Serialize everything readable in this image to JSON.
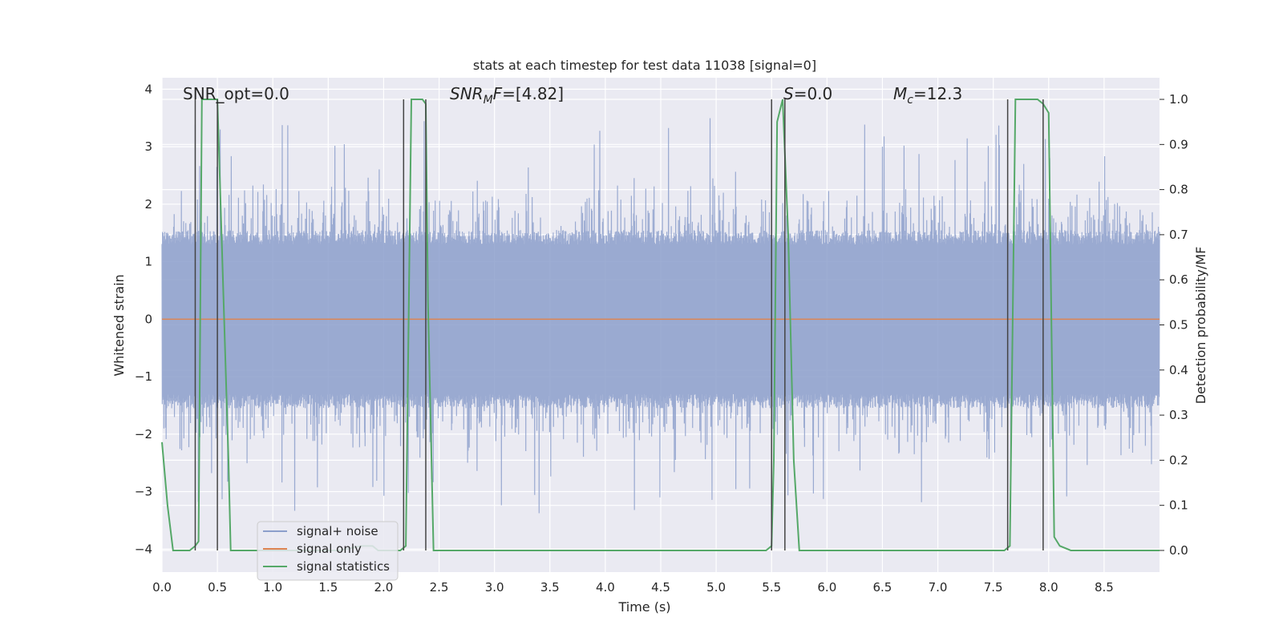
{
  "chart_data": {
    "type": "line",
    "title": "stats at each timestep for test data 11038 [signal=0]",
    "xlabel": "Time (s)",
    "ylabel": "Whitened strain",
    "y2label": "Detection probability/MF",
    "xlim": [
      0,
      9.0
    ],
    "ylim": [
      -4.4,
      4.2
    ],
    "y2lim": [
      -0.048,
      1.048
    ],
    "x_ticks": [
      "0.0",
      "0.5",
      "1.0",
      "1.5",
      "2.0",
      "2.5",
      "3.0",
      "3.5",
      "4.0",
      "4.5",
      "5.0",
      "5.5",
      "6.0",
      "6.5",
      "7.0",
      "7.5",
      "8.0",
      "8.5"
    ],
    "y_ticks": [
      "4",
      "3",
      "2",
      "1",
      "0",
      "−1",
      "−2",
      "−3",
      "−4"
    ],
    "y2_ticks": [
      "1.0",
      "0.9",
      "0.8",
      "0.7",
      "0.6",
      "0.5",
      "0.4",
      "0.3",
      "0.2",
      "0.1",
      "0.0"
    ],
    "grid": true,
    "legend_placement": "lower-left",
    "annotations": {
      "snr_opt": "SNR_opt=0.0",
      "snr_mf": "=[4.82]",
      "snr_mf_symbol": "SNR",
      "snr_mf_sub": "M",
      "snr_mf_suffix": "F",
      "s_label": "S",
      "s_value": "=0.0",
      "mc_symbol": "M",
      "mc_sub": "c",
      "mc_value": "=12.3"
    },
    "series": [
      {
        "name": "signal+ noise",
        "color": "#8c9fcb",
        "kind": "noise",
        "envelope_abs": 1.4,
        "peak_max": 3.5,
        "peak_min": -4.0
      },
      {
        "name": "signal only",
        "color": "#dd8452",
        "kind": "constant",
        "value": 0
      },
      {
        "name": "signal statistics",
        "color": "#55a868",
        "axis": "y2",
        "x": [
          0.0,
          0.05,
          0.1,
          0.15,
          0.2,
          0.25,
          0.3,
          0.33,
          0.36,
          0.4,
          0.45,
          0.5,
          0.55,
          0.6,
          0.62,
          0.65,
          0.7,
          0.8,
          0.9,
          1.0,
          1.2,
          1.4,
          1.6,
          1.8,
          1.9,
          1.95,
          2.0,
          2.05,
          2.1,
          2.15,
          2.2,
          2.25,
          2.3,
          2.35,
          2.38,
          2.4,
          2.45,
          2.5,
          2.6,
          2.8,
          3.0,
          3.5,
          4.0,
          4.5,
          5.0,
          5.3,
          5.45,
          5.5,
          5.52,
          5.55,
          5.6,
          5.65,
          5.7,
          5.75,
          5.8,
          6.0,
          6.5,
          7.0,
          7.5,
          7.6,
          7.65,
          7.7,
          7.75,
          7.8,
          7.9,
          7.95,
          8.0,
          8.05,
          8.1,
          8.2,
          8.5,
          9.0
        ],
        "y": [
          0.24,
          0.1,
          0.0,
          0.0,
          0.0,
          0.0,
          0.01,
          0.02,
          1.0,
          1.0,
          1.0,
          1.0,
          0.6,
          0.2,
          0.0,
          0.0,
          0.0,
          0.0,
          0.0,
          0.0,
          0.0,
          0.0,
          0.0,
          0.01,
          0.01,
          0.0,
          0.0,
          0.0,
          0.0,
          0.0,
          0.01,
          1.0,
          1.0,
          1.0,
          0.99,
          0.55,
          0.0,
          0.0,
          0.0,
          0.0,
          0.0,
          0.0,
          0.0,
          0.0,
          0.0,
          0.0,
          0.0,
          0.01,
          0.2,
          0.95,
          1.0,
          0.7,
          0.2,
          0.0,
          0.0,
          0.0,
          0.0,
          0.0,
          0.0,
          0.0,
          0.01,
          1.0,
          1.0,
          1.0,
          1.0,
          0.99,
          0.97,
          0.03,
          0.01,
          0.0,
          0.0,
          0.0
        ]
      }
    ],
    "vlines": [
      0.3,
      0.5,
      2.18,
      2.38,
      5.5,
      5.62,
      7.63,
      7.95
    ]
  }
}
